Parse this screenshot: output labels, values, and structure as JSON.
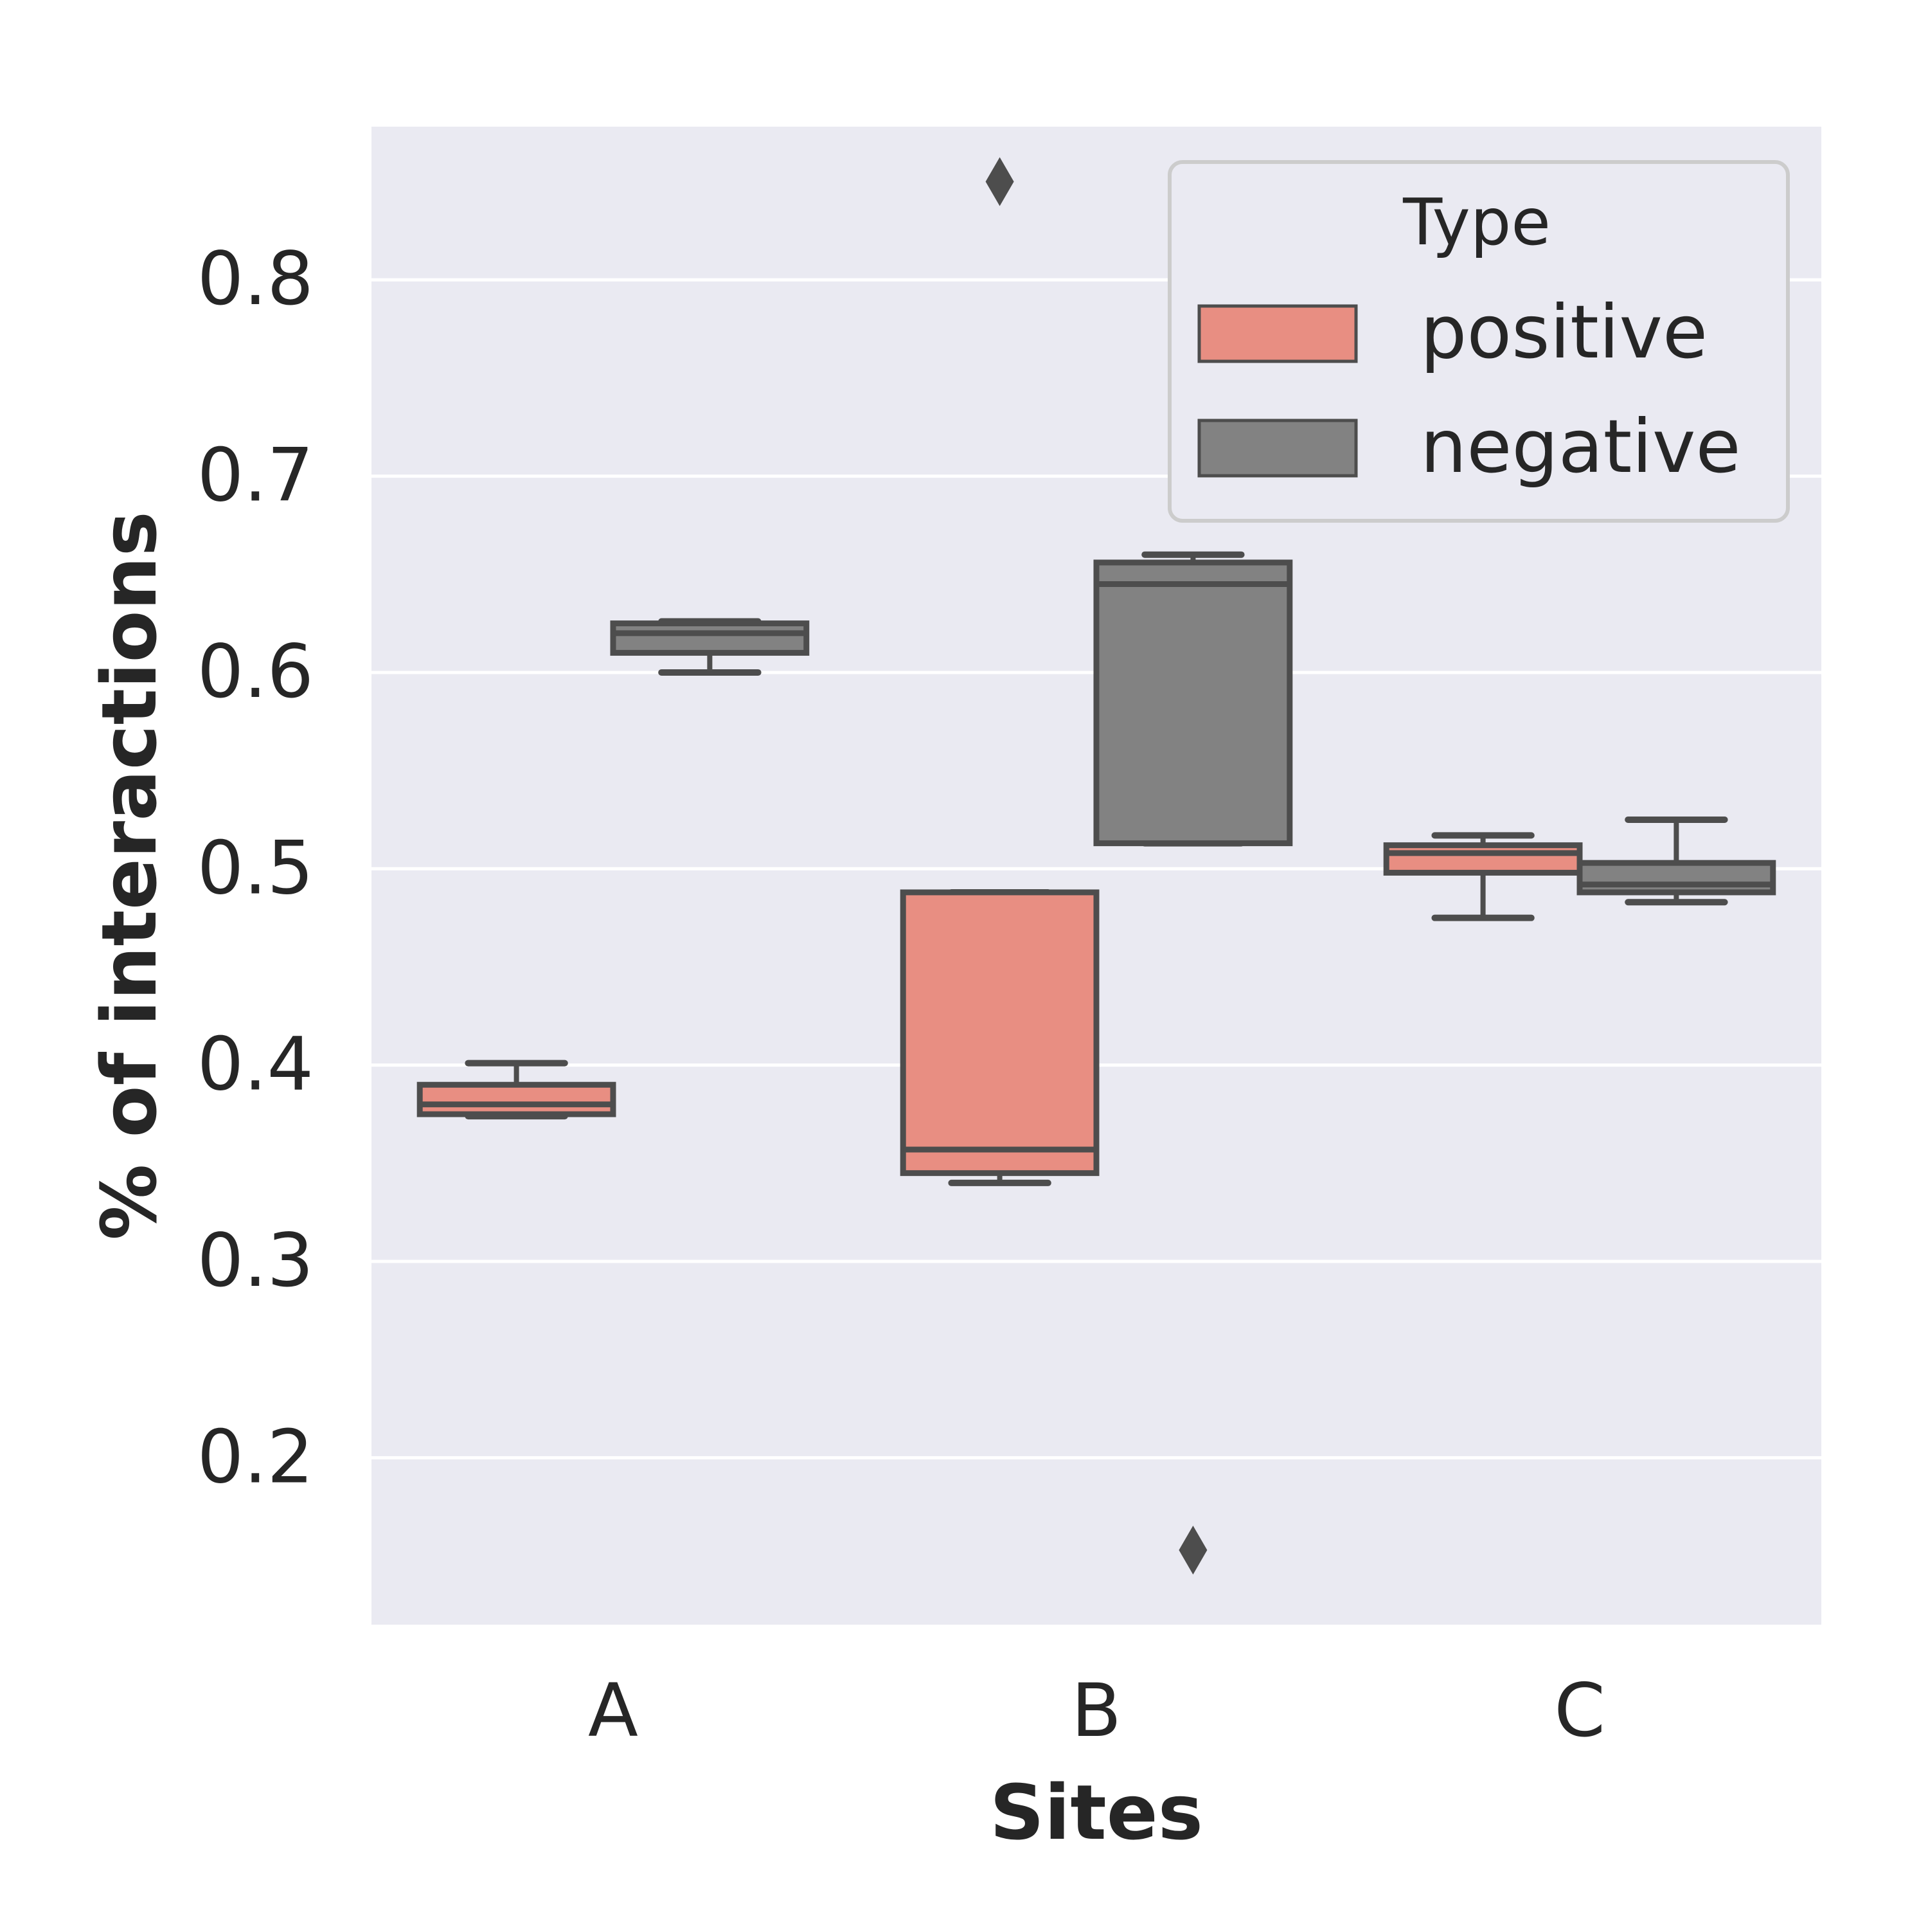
{
  "chart_data": {
    "type": "box",
    "xlabel": "Sites",
    "ylabel": "% of interactions",
    "ylim": [
      0.115,
      0.878
    ],
    "yticks": [
      0.2,
      0.3,
      0.4,
      0.5,
      0.6,
      0.7,
      0.8
    ],
    "categories": [
      "A",
      "B",
      "C"
    ],
    "grid": true,
    "legend": {
      "title": "Type",
      "placement": "top-right",
      "entries": [
        "positive",
        "negative"
      ]
    },
    "series": [
      {
        "name": "positive",
        "color": "#e88e82",
        "boxes": [
          {
            "category": "A",
            "whisker_low": 0.374,
            "q1": 0.375,
            "median": 0.38,
            "q3": 0.39,
            "whisker_high": 0.401,
            "outliers": []
          },
          {
            "category": "B",
            "whisker_low": 0.34,
            "q1": 0.345,
            "median": 0.357,
            "q3": 0.488,
            "whisker_high": 0.488,
            "outliers": [
              0.85
            ]
          },
          {
            "category": "C",
            "whisker_low": 0.475,
            "q1": 0.498,
            "median": 0.508,
            "q3": 0.512,
            "whisker_high": 0.517,
            "outliers": []
          }
        ]
      },
      {
        "name": "negative",
        "color": "#828282",
        "boxes": [
          {
            "category": "A",
            "whisker_low": 0.6,
            "q1": 0.61,
            "median": 0.62,
            "q3": 0.625,
            "whisker_high": 0.626,
            "outliers": []
          },
          {
            "category": "B",
            "whisker_low": 0.513,
            "q1": 0.513,
            "median": 0.645,
            "q3": 0.656,
            "whisker_high": 0.66,
            "outliers": [
              0.153
            ]
          },
          {
            "category": "C",
            "whisker_low": 0.483,
            "q1": 0.488,
            "median": 0.492,
            "q3": 0.503,
            "whisker_high": 0.525,
            "outliers": []
          }
        ]
      }
    ],
    "colors": {
      "background": "#eaeaf2",
      "grid": "#ffffff",
      "edge": "#4d4d4d",
      "text": "#262626"
    }
  }
}
